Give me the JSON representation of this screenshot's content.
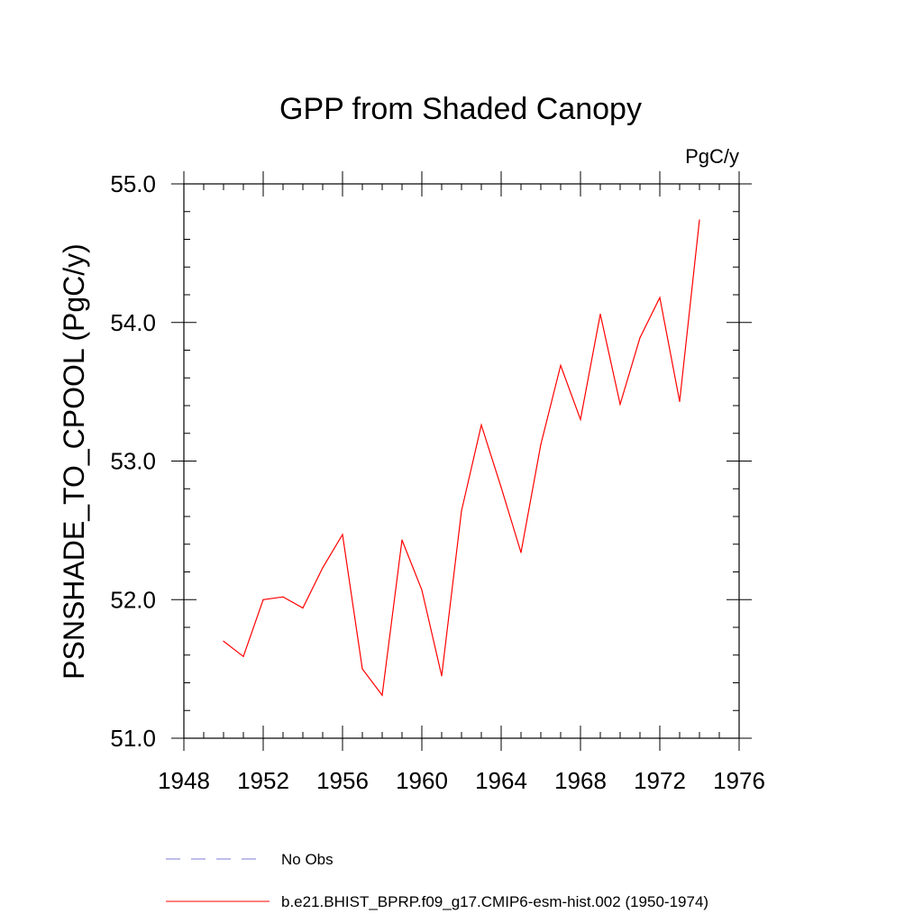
{
  "chart_data": {
    "type": "line",
    "title": "GPP from Shaded Canopy",
    "units_label": "PgC/y",
    "ylabel": "PSNSHADE_TO_CPOOL  (PgC/y)",
    "xlabel": "",
    "xlim": [
      1948,
      1976
    ],
    "ylim": [
      51.0,
      55.0
    ],
    "x_ticks": [
      1948,
      1952,
      1956,
      1960,
      1964,
      1968,
      1972,
      1976
    ],
    "x_tick_labels": [
      "1948",
      "1952",
      "1956",
      "1960",
      "1964",
      "1968",
      "1972",
      "1976"
    ],
    "x_minor_step": 1,
    "y_ticks": [
      51.0,
      52.0,
      53.0,
      54.0,
      55.0
    ],
    "y_tick_labels": [
      "51.0",
      "52.0",
      "53.0",
      "54.0",
      "55.0"
    ],
    "y_minor_step": 0.2,
    "grid": false,
    "legend_position": "bottom",
    "series": [
      {
        "name": "b.e21.BHIST_BPRP.f09_g17.CMIP6-esm-hist.002 (1950-1974)",
        "color": "#ff0000",
        "style": "solid",
        "x": [
          1950,
          1951,
          1952,
          1953,
          1954,
          1955,
          1956,
          1957,
          1958,
          1959,
          1960,
          1961,
          1962,
          1963,
          1964,
          1965,
          1966,
          1967,
          1968,
          1969,
          1970,
          1971,
          1972,
          1973,
          1974
        ],
        "y": [
          51.7,
          51.59,
          52.0,
          52.02,
          51.94,
          52.23,
          52.47,
          51.5,
          51.31,
          52.43,
          52.07,
          51.45,
          52.64,
          53.26,
          52.81,
          52.34,
          53.12,
          53.69,
          53.3,
          54.06,
          53.41,
          53.89,
          54.18,
          53.43,
          54.74
        ]
      }
    ],
    "legend": [
      {
        "label": "No Obs",
        "color": "#7b7bd6",
        "style": "dashed"
      },
      {
        "label": "b.e21.BHIST_BPRP.f09_g17.CMIP6-esm-hist.002 (1950-1974)",
        "color": "#ff0000",
        "style": "solid"
      }
    ]
  }
}
